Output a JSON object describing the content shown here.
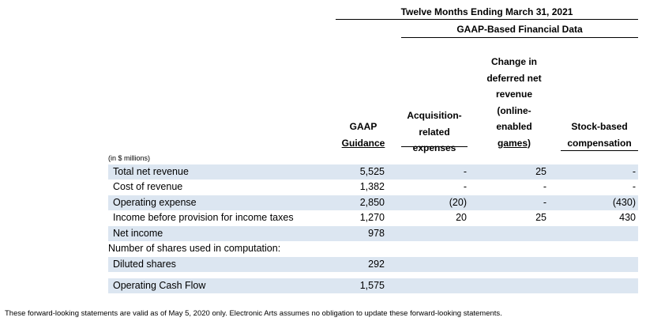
{
  "header": {
    "period": "Twelve Months Ending March 31, 2021",
    "subheader": "GAAP-Based Financial Data"
  },
  "columns": [
    {
      "lines": [
        "GAAP",
        "Guidance"
      ]
    },
    {
      "lines": [
        "Acquisition-",
        "related",
        "expenses"
      ]
    },
    {
      "lines": [
        "Change in",
        "deferred net",
        "revenue",
        "(online-",
        "enabled",
        "games)"
      ]
    },
    {
      "lines": [
        "Stock-based",
        "compensation"
      ]
    }
  ],
  "units": "(in $ millions)",
  "rows": [
    {
      "label": "Total net revenue",
      "values": [
        "5,525",
        "-",
        "25",
        "-"
      ]
    },
    {
      "label": "Cost of revenue",
      "values": [
        "1,382",
        "-",
        "-",
        "-"
      ]
    },
    {
      "label": "Operating expense",
      "values": [
        "2,850",
        "(20)",
        "-",
        "(430)"
      ]
    },
    {
      "label": "Income before provision for income taxes",
      "values": [
        "1,270",
        "20",
        "25",
        "430"
      ]
    },
    {
      "label": "Net income",
      "values": [
        "978",
        "",
        "",
        ""
      ]
    },
    {
      "label": "Number of shares used in computation:",
      "values": [
        "",
        "",
        "",
        ""
      ]
    },
    {
      "label": "Diluted shares",
      "values": [
        "292",
        "",
        "",
        ""
      ]
    },
    {
      "label": "Operating Cash Flow",
      "values": [
        "1,575",
        "",
        "",
        ""
      ]
    }
  ],
  "footnote": "These forward-looking statements are valid as of May 5, 2020 only. Electronic Arts assumes no obligation to update these forward-looking statements."
}
